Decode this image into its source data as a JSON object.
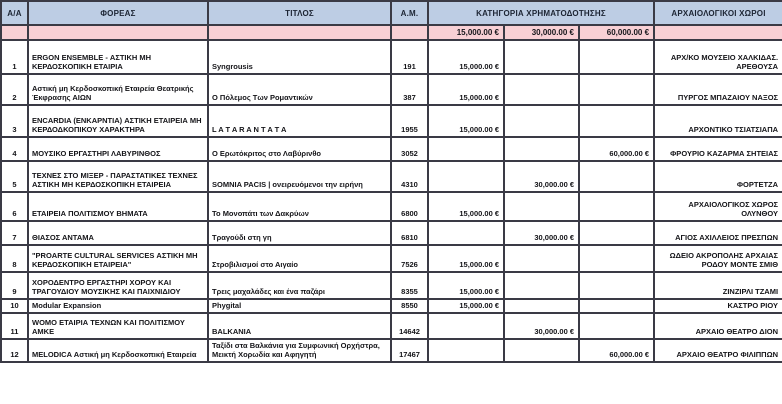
{
  "table": {
    "columns": [
      {
        "key": "aa",
        "label": "Α/Α"
      },
      {
        "key": "foreas",
        "label": "ΦΟΡΕΑΣ"
      },
      {
        "key": "titlos",
        "label": "ΤΙΤΛΟΣ"
      },
      {
        "key": "am",
        "label": "Α.Μ."
      },
      {
        "key": "category",
        "label": "ΚΑΤΗΓΟΡΙΑ ΧΡΗΜΑΤΟΔΟΤΗΣΗΣ"
      },
      {
        "key": "sites",
        "label": "ΑΡΧΑΙΟΛΟΓΙΚΟΙ ΧΩΡΟΙ"
      }
    ],
    "funding_tiers": [
      "15,000.00 €",
      "30,000.00 €",
      "60,000.00 €"
    ],
    "colors": {
      "header_bg": "#bdcde4",
      "tier_row_bg": "#f8d0d5",
      "border": "#3a3a45"
    },
    "rows": [
      {
        "aa": "1",
        "foreas": "ERGON ENSEMBLE - ΑΣΤΙΚΗ ΜΗ ΚΕΡΔΟΣΚΟΠΙΚΗ ΕΤΑΙΡΙΑ",
        "titlos": "Syngrousis",
        "am": "191",
        "funding": [
          "15,000.00 €",
          "",
          ""
        ],
        "site": "ΑΡΧ/ΚΟ ΜΟΥΣΕΙΟ ΧΑΛΚΙΔΑΣ. ΑΡΕΘΟΥΣΑ"
      },
      {
        "aa": "2",
        "foreas": "Αστική μη Κερδοσκοπική Εταιρεία Θεατρικής Έκφρασης ΑΙΩΝ",
        "titlos": "Ο Πόλεμος Των Ρομαντικών",
        "am": "387",
        "funding": [
          "15,000.00 €",
          "",
          ""
        ],
        "site": "ΠΥΡΓΟΣ ΜΠΑΖΑΙΟΥ ΝΑΞΟΣ"
      },
      {
        "aa": "3",
        "foreas": "ENCARDIA (ΕΝΚΑΡΝΤΙΑ) ΑΣΤΙΚΗ ΕΤΑΙΡΕΙΑ ΜΗ ΚΕΡΔΟΔΚΟΠΙΚΟΥ ΧΑΡΑΚΤΗΡΑ",
        "titlos": "L A  T A R A N T A T A",
        "am": "1955",
        "funding": [
          "15,000.00 €",
          "",
          ""
        ],
        "site": "ΑΡΧΟΝΤΙΚΟ ΤΣΙΑΤΣΙΑΠΑ"
      },
      {
        "aa": "4",
        "foreas": "ΜΟΥΣΙΚΟ ΕΡΓΑΣΤΗΡΙ ΛΑΒΥΡΙΝΘΟΣ",
        "titlos": "Ο Ερωτόκριτος στο Λαβύρινθο",
        "am": "3052",
        "funding": [
          "",
          "",
          "60,000.00 €"
        ],
        "site": "ΦΡΟΥΡΙΟ ΚΑΖΑΡΜΑ ΣΗΤΕΙΑΣ"
      },
      {
        "aa": "5",
        "foreas": "ΤΕΧΝΕΣ ΣΤΟ ΜΙΞΕΡ - ΠΑΡΑΣΤΑΤΙΚΕΣ ΤΕΧΝΕΣ ΑΣΤΙΚΗ ΜΗ ΚΕΡΔΟΣΚΟΠΙΚΗ ΕΤΑΙΡΕΙΑ",
        "titlos": "SOMNIA PACIS | ονειρευόμενοι την ειρήνη",
        "am": "4310",
        "funding": [
          "",
          "30,000.00 €",
          ""
        ],
        "site": "ΦΟΡΤΕΤΖΑ"
      },
      {
        "aa": "6",
        "foreas": "ΕΤΑΙΡΕΙΑ ΠΟΛΙΤΙΣΜΟΥ ΒΗΜΑΤΑ",
        "titlos": "Το Μονοπάτι των Δακρύων",
        "am": "6800",
        "funding": [
          "15,000.00 €",
          "",
          ""
        ],
        "site": "ΑΡΧΑΙΟΛΟΓΙΚΟΣ ΧΩΡΟΣ ΟΛΥΝΘΟΥ"
      },
      {
        "aa": "7",
        "foreas": "ΘΙΑΣΟΣ ΑΝΤΑΜΑ",
        "titlos": "Τραγούδι στη γη",
        "am": "6810",
        "funding": [
          "",
          "30,000.00 €",
          ""
        ],
        "site": "ΑΓΙΟΣ ΑΧΙΛΛΕΙΟΣ ΠΡΕΣΠΩΝ"
      },
      {
        "aa": "8",
        "foreas": "\"PROARTE CULTURAL SERVICES ΑΣΤΙΚΗ ΜΗ ΚΕΡΔΟΣΚΟΠΙΚΗ ΕΤΑΙΡΕΙΑ\"",
        "titlos": "Στροβιλισμοί στο Αιγαίο",
        "am": "7526",
        "funding": [
          "15,000.00 €",
          "",
          ""
        ],
        "site": "ΩΔΕΙΟ ΑΚΡΟΠΟΛΗΣ ΑΡΧΑΙΑΣ ΡΟΔΟΥ ΜΟΝΤΕ ΣΜΙΘ"
      },
      {
        "aa": "9",
        "foreas": "ΧΟΡΟΔΕΝΤΡΟ ΕΡΓΑΣΤΗΡΙ ΧΟΡΟΥ ΚΑΙ ΤΡΑΓΟΥΔΙΟΥ ΜΟΥΣΙΚΗΣ ΚΑΙ ΠΑΙΧΝΙΔΙΟΥ",
        "titlos": "Τρεις μαχαλάδες και ένα παζάρι",
        "am": "8355",
        "funding": [
          "15,000.00 €",
          "",
          ""
        ],
        "site": "ΖΙΝΖΙΡΛΙ ΤΖΑΜΙ"
      },
      {
        "aa": "10",
        "foreas": "Modular Expansion",
        "titlos": "Phygital",
        "am": "8550",
        "funding": [
          "15,000.00 €",
          "",
          ""
        ],
        "site": "ΚΑΣΤΡΟ ΡΙΟΥ"
      },
      {
        "aa": "11",
        "foreas": "WOMO ΕΤΑΙΡΙΑ ΤΕΧΝΩΝ ΚΑΙ ΠΟΛΙΤΙΣΜΟΥ ΑΜΚΕ",
        "titlos": "BALKANIA",
        "am": "14642",
        "funding": [
          "",
          "30,000.00 €",
          ""
        ],
        "site": "ΑΡΧΑΙΟ ΘΕΑΤΡΟ ΔΙΟΝ"
      },
      {
        "aa": "12",
        "foreas": "MELODICA Αστική μη Κερδοσκοπική Εταιρεία",
        "titlos": "Ταξίδι στα Βαλκάνια για Συμφωνική Ορχήστρα, Μεικτή Χορωδία και Αφηγητή",
        "am": "17467",
        "funding": [
          "",
          "",
          "60,000.00 €"
        ],
        "site": "ΑΡΧΑΙΟ ΘΕΑΤΡΟ ΦΙΛΙΠΠΩΝ"
      }
    ]
  }
}
